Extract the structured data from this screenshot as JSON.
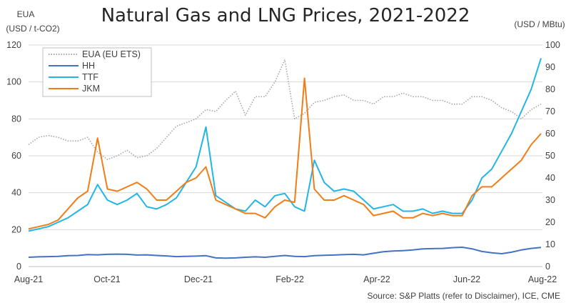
{
  "chart_data": {
    "type": "line",
    "title": "Natural Gas and LNG Prices, 2021-2022",
    "y_left_label_line1": "EUA",
    "y_left_label_line2": "(USD / t-CO2)",
    "y_right_label": "(USD / MBtu)",
    "source": "Source: S&P Platts (refer to Disclaimer), ICE, CME",
    "x_ticks": [
      "Aug-21",
      "Oct-21",
      "Dec-21",
      "Feb-22",
      "Apr-22",
      "Jun-22",
      "Aug-22"
    ],
    "x_range": [
      "2021-08-01",
      "2022-08-01"
    ],
    "y_left_ticks": [
      "0",
      "20",
      "40",
      "60",
      "80",
      "100",
      "120"
    ],
    "y_left_range": [
      0,
      120
    ],
    "y_right_ticks": [
      "0",
      "10",
      "20",
      "30",
      "40",
      "50",
      "60",
      "70",
      "80",
      "90",
      "100"
    ],
    "y_right_range": [
      0,
      100
    ],
    "legend_placement": "top-left",
    "grid": "horizontal",
    "x": [
      "2021-08-01",
      "2021-08-08",
      "2021-08-15",
      "2021-08-22",
      "2021-08-29",
      "2021-09-05",
      "2021-09-12",
      "2021-09-19",
      "2021-09-26",
      "2021-10-03",
      "2021-10-10",
      "2021-10-17",
      "2021-10-24",
      "2021-10-31",
      "2021-11-07",
      "2021-11-14",
      "2021-11-21",
      "2021-11-28",
      "2021-12-05",
      "2021-12-12",
      "2021-12-19",
      "2021-12-26",
      "2022-01-02",
      "2022-01-09",
      "2022-01-16",
      "2022-01-23",
      "2022-01-30",
      "2022-02-06",
      "2022-02-13",
      "2022-02-20",
      "2022-02-27",
      "2022-03-06",
      "2022-03-13",
      "2022-03-20",
      "2022-03-27",
      "2022-04-03",
      "2022-04-10",
      "2022-04-17",
      "2022-04-24",
      "2022-05-01",
      "2022-05-08",
      "2022-05-15",
      "2022-05-22",
      "2022-05-29",
      "2022-06-05",
      "2022-06-12",
      "2022-06-19",
      "2022-06-26",
      "2022-07-03",
      "2022-07-10",
      "2022-07-17",
      "2022-07-24",
      "2022-07-31"
    ],
    "series": [
      {
        "name": "EUA (EU ETS)",
        "axis": "left",
        "color": "#a6a6a6",
        "style": "dotted",
        "values": [
          66,
          70,
          71,
          70,
          68,
          68,
          70,
          62,
          58,
          60,
          63,
          59,
          60,
          64,
          70,
          76,
          78,
          80,
          85,
          84,
          90,
          95,
          82,
          92,
          92,
          100,
          112,
          80,
          83,
          89,
          90,
          92,
          93,
          90,
          90,
          88,
          92,
          92,
          94,
          92,
          92,
          90,
          90,
          88,
          88,
          92,
          92,
          90,
          86,
          84,
          80,
          85,
          88
        ]
      },
      {
        "name": "HH",
        "axis": "right",
        "color": "#4472c4",
        "style": "solid",
        "values": [
          4.2,
          4.4,
          4.5,
          4.6,
          4.9,
          5.0,
          5.4,
          5.3,
          5.5,
          5.6,
          5.5,
          5.2,
          5.3,
          5.0,
          4.8,
          4.5,
          4.6,
          4.7,
          4.9,
          3.9,
          3.8,
          3.9,
          4.2,
          4.4,
          4.2,
          4.6,
          5.0,
          4.6,
          4.5,
          4.9,
          5.1,
          5.2,
          5.4,
          5.5,
          5.3,
          6.0,
          6.7,
          7.0,
          7.2,
          7.5,
          8.0,
          8.1,
          8.2,
          8.5,
          8.7,
          8.0,
          6.8,
          6.2,
          5.8,
          6.5,
          7.5,
          8.2,
          8.6
        ]
      },
      {
        "name": "TTF",
        "axis": "right",
        "color": "#22b5e5",
        "style": "solid",
        "values": [
          16,
          17,
          18,
          20,
          22,
          25,
          28,
          37,
          30,
          28,
          30,
          33,
          27,
          26,
          28,
          31,
          38,
          45,
          63,
          32,
          29,
          26,
          25,
          30,
          27,
          32,
          33,
          27,
          25,
          48,
          38,
          34,
          35,
          34,
          30,
          26,
          27,
          28,
          25,
          25,
          26,
          24,
          25,
          24,
          24,
          30,
          40,
          44,
          52,
          60,
          70,
          80,
          94
        ]
      },
      {
        "name": "JKM",
        "axis": "right",
        "color": "#f07d17",
        "style": "solid",
        "values": [
          17,
          18,
          19,
          21,
          26,
          31,
          34,
          58,
          35,
          34,
          36,
          38,
          35,
          30,
          30,
          34,
          38,
          40,
          45,
          30,
          28,
          26,
          24,
          24,
          22,
          27,
          30,
          29,
          85,
          35,
          30,
          30,
          32,
          30,
          28,
          23,
          24,
          25,
          22,
          22,
          24,
          23,
          24,
          23,
          23,
          32,
          36,
          36,
          40,
          44,
          48,
          55,
          60
        ]
      }
    ]
  }
}
